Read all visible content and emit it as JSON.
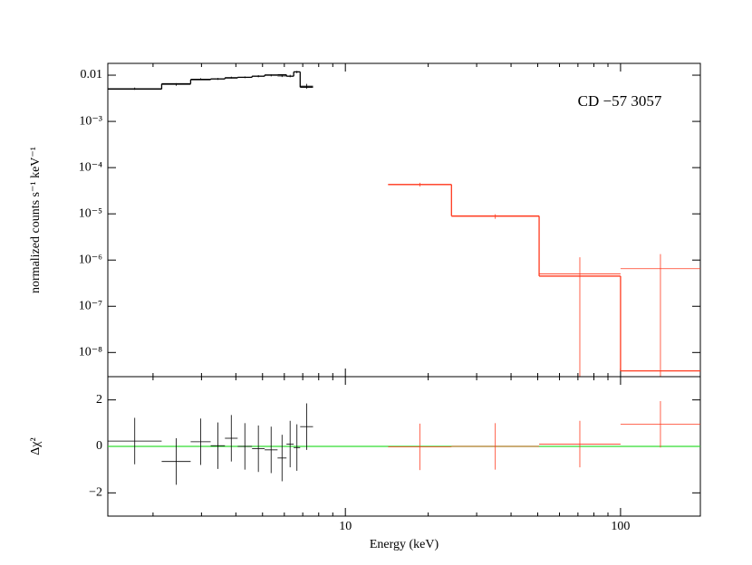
{
  "chart_data": [
    {
      "type": "step",
      "annotation": "CD −57 3057",
      "y_label": "normalized counts s⁻¹ keV⁻¹",
      "xlim": [
        1.37,
        195
      ],
      "x_log": true,
      "ylim": [
        3e-09,
        0.018
      ],
      "y_log": true,
      "yticks": [
        0.01,
        {
          "value": 0.001,
          "label": "10⁻³"
        },
        {
          "value": 0.0001,
          "label": "10⁻⁴"
        },
        {
          "value": 1e-05,
          "label": "10⁻⁵"
        },
        {
          "value": 1e-06,
          "label": "10⁻⁶"
        },
        {
          "value": 1e-07,
          "label": "10⁻⁷"
        },
        {
          "value": 1e-08,
          "label": "10⁻⁸"
        }
      ],
      "series": [
        {
          "color": "#000000",
          "xlo": [
            1.37,
            2.15,
            2.74,
            3.24,
            3.65,
            4.06,
            4.58,
            5.09,
            5.67,
            6.11,
            6.49,
            6.85
          ],
          "xhi": [
            2.15,
            2.74,
            3.24,
            3.65,
            4.06,
            4.58,
            5.09,
            5.67,
            6.11,
            6.49,
            6.85,
            7.63
          ],
          "values": [
            0.0051,
            0.0063,
            0.0082,
            0.0083,
            0.0089,
            0.009,
            0.0095,
            0.0099,
            0.0096,
            0.0096,
            0.0117,
            0.0058
          ],
          "errors": [
            0.0003,
            0.0004,
            0.0004,
            0.0004,
            0.0004,
            0.0004,
            0.0005,
            0.0005,
            0.0005,
            0.0006,
            0.0007,
            0.0007
          ]
        },
        {
          "color": "#ff3a1f",
          "xlo": [
            14.3,
            24.3,
            50.6,
            100
          ],
          "xhi": [
            24.3,
            50.6,
            100,
            195
          ],
          "values": [
            4.3e-05,
            8.8e-06,
            5e-07,
            6.5e-07
          ],
          "errors": [
            4e-06,
            1e-06,
            6.5e-07,
            7e-07
          ]
        }
      ],
      "models": [
        {
          "color": "#000000",
          "edges": [
            1.37,
            2.15,
            2.74,
            3.24,
            3.65,
            4.06,
            4.58,
            5.09,
            5.67,
            6.11,
            6.49,
            6.85,
            7.63
          ],
          "values": [
            0.005,
            0.0065,
            0.008,
            0.0083,
            0.0087,
            0.009,
            0.0095,
            0.0101,
            0.0102,
            0.0095,
            0.0118,
            0.0055
          ]
        },
        {
          "color": "#ff3a1f",
          "edges": [
            14.3,
            24.3,
            50.6,
            100,
            195
          ],
          "values": [
            4.3e-05,
            9e-06,
            4.5e-07,
            4e-09
          ]
        }
      ]
    },
    {
      "type": "step",
      "x_label": "Energy (keV)",
      "y_label": "Δχ²",
      "xlim": [
        1.37,
        195
      ],
      "x_log": true,
      "xticks": [
        10,
        100
      ],
      "xminorticks": [
        2,
        3,
        4,
        5,
        6,
        7,
        8,
        9,
        20,
        30,
        40,
        50,
        60,
        70,
        80,
        90
      ],
      "ylim": [
        -3,
        3
      ],
      "yticks": [
        {
          "value": -2,
          "label": "−2"
        },
        0,
        2
      ],
      "reference_line": {
        "value": 0,
        "color": "#33dd33"
      },
      "series": [
        {
          "color": "#000000",
          "xlo": [
            1.37,
            2.15,
            2.74,
            3.24,
            3.65,
            4.06,
            4.58,
            5.09,
            5.67,
            6.11,
            6.49,
            6.85
          ],
          "xhi": [
            2.15,
            2.74,
            3.24,
            3.65,
            4.06,
            4.58,
            5.09,
            5.67,
            6.11,
            6.49,
            6.85,
            7.63
          ],
          "values": [
            0.23,
            -0.65,
            0.2,
            0.03,
            0.35,
            0.0,
            -0.1,
            -0.15,
            -0.5,
            0.1,
            -0.05,
            0.85
          ],
          "errors": [
            1.0,
            1.0,
            1.0,
            1.0,
            1.0,
            1.0,
            1.0,
            1.0,
            1.0,
            1.0,
            1.0,
            1.0
          ]
        },
        {
          "color": "#ff3a1f",
          "xlo": [
            14.3,
            24.3,
            50.6,
            100
          ],
          "xhi": [
            24.3,
            50.6,
            100,
            195
          ],
          "values": [
            -0.02,
            0.0,
            0.1,
            0.95
          ],
          "errors": [
            1.0,
            1.0,
            1.0,
            1.0
          ]
        }
      ]
    }
  ]
}
